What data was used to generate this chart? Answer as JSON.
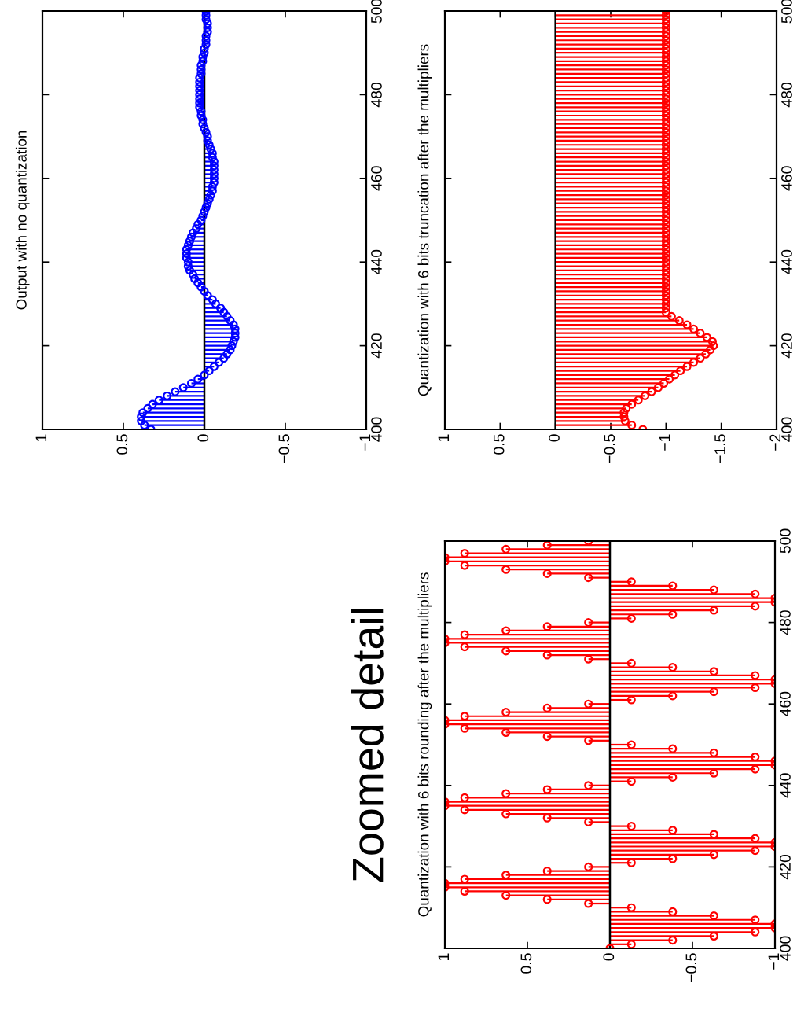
{
  "chart_data": [
    {
      "type": "lollipop",
      "orientation": "horizontal",
      "title": "Output with no quantization",
      "color": "#0000ff",
      "marker": "circle",
      "x": [
        400,
        401,
        402,
        403,
        404,
        405,
        406,
        407,
        408,
        409,
        410,
        411,
        412,
        413,
        414,
        415,
        416,
        417,
        418,
        419,
        420,
        421,
        422,
        423,
        424,
        425,
        426,
        427,
        428,
        429,
        430,
        431,
        432,
        433,
        434,
        435,
        436,
        437,
        438,
        439,
        440,
        441,
        442,
        443,
        444,
        445,
        446,
        447,
        448,
        449,
        450,
        451,
        452,
        453,
        454,
        455,
        456,
        457,
        458,
        459,
        460,
        461,
        462,
        463,
        464,
        465,
        466,
        467,
        468,
        469,
        470,
        471,
        472,
        473,
        474,
        475,
        476,
        477,
        478,
        479,
        480,
        481,
        482,
        483,
        484,
        485,
        486,
        487,
        488,
        489,
        490,
        491,
        492,
        493,
        494,
        495,
        496,
        497,
        498,
        499,
        500
      ],
      "values": [
        0.33,
        0.37,
        0.39,
        0.39,
        0.38,
        0.35,
        0.32,
        0.28,
        0.23,
        0.18,
        0.13,
        0.08,
        0.04,
        0.0,
        -0.03,
        -0.06,
        -0.09,
        -0.12,
        -0.14,
        -0.16,
        -0.17,
        -0.18,
        -0.19,
        -0.19,
        -0.19,
        -0.18,
        -0.16,
        -0.14,
        -0.12,
        -0.1,
        -0.07,
        -0.05,
        -0.02,
        0.0,
        0.02,
        0.04,
        0.06,
        0.07,
        0.09,
        0.1,
        0.1,
        0.11,
        0.11,
        0.11,
        0.1,
        0.09,
        0.08,
        0.07,
        0.05,
        0.04,
        0.02,
        0.01,
        0.0,
        -0.01,
        -0.02,
        -0.03,
        -0.04,
        -0.05,
        -0.05,
        -0.06,
        -0.06,
        -0.06,
        -0.06,
        -0.06,
        -0.06,
        -0.05,
        -0.05,
        -0.04,
        -0.03,
        -0.02,
        -0.02,
        -0.01,
        0.0,
        0.01,
        0.01,
        0.02,
        0.02,
        0.03,
        0.03,
        0.03,
        0.03,
        0.03,
        0.03,
        0.03,
        0.03,
        0.02,
        0.02,
        0.02,
        0.01,
        0.01,
        0.0,
        0.0,
        -0.01,
        -0.01,
        -0.01,
        -0.02,
        -0.02,
        -0.02,
        -0.01,
        -0.01,
        -0.01
      ],
      "xlim": [
        1,
        -1
      ],
      "xticks": [
        {
          "value": 1,
          "label": "1"
        },
        {
          "value": 0.5,
          "label": "0.5"
        },
        {
          "value": 0,
          "label": "0"
        },
        {
          "value": -0.5,
          "label": "−0.5"
        },
        {
          "value": -1,
          "label": "−1"
        }
      ],
      "ylim": [
        400,
        500
      ],
      "yticks": [
        400,
        420,
        440,
        460,
        480,
        500
      ]
    },
    {
      "type": "lollipop",
      "orientation": "horizontal",
      "title": "Quantization with 6 bits truncation after the multipliers",
      "color": "#ff0000",
      "marker": "circle",
      "x": [
        400,
        401,
        402,
        403,
        404,
        405,
        406,
        407,
        408,
        409,
        410,
        411,
        412,
        413,
        414,
        415,
        416,
        417,
        418,
        419,
        420,
        421,
        422,
        423,
        424,
        425,
        426,
        427,
        428,
        429,
        430,
        431,
        432,
        433,
        434,
        435,
        436,
        437,
        438,
        439,
        440,
        441,
        442,
        443,
        444,
        445,
        446,
        447,
        448,
        449,
        450,
        451,
        452,
        453,
        454,
        455,
        456,
        457,
        458,
        459,
        460,
        461,
        462,
        463,
        464,
        465,
        466,
        467,
        468,
        469,
        470,
        471,
        472,
        473,
        474,
        475,
        476,
        477,
        478,
        479,
        480,
        481,
        482,
        483,
        484,
        485,
        486,
        487,
        488,
        489,
        490,
        491,
        492,
        493,
        494,
        495,
        496,
        497,
        498,
        499,
        500
      ],
      "values": [
        -0.79,
        -0.69,
        -0.63,
        -0.62,
        -0.62,
        -0.64,
        -0.69,
        -0.75,
        -0.81,
        -0.87,
        -0.93,
        -0.98,
        -1.03,
        -1.08,
        -1.13,
        -1.19,
        -1.25,
        -1.31,
        -1.36,
        -1.4,
        -1.43,
        -1.42,
        -1.37,
        -1.31,
        -1.25,
        -1.19,
        -1.12,
        -1.05,
        -1,
        -1,
        -1,
        -1,
        -1,
        -1,
        -1,
        -1,
        -1,
        -1,
        -1,
        -1,
        -1,
        -1,
        -1,
        -1,
        -1,
        -1,
        -1,
        -1,
        -1,
        -1,
        -1,
        -1,
        -1,
        -1,
        -1,
        -1,
        -1,
        -1,
        -1,
        -1,
        -1,
        -1,
        -1,
        -1,
        -1,
        -1,
        -1,
        -1,
        -1,
        -1,
        -1,
        -1,
        -1,
        -1,
        -1,
        -1,
        -1,
        -1,
        -1,
        -1,
        -1,
        -1,
        -1,
        -1,
        -1,
        -1,
        -1,
        -1,
        -1,
        -1,
        -1,
        -1,
        -1,
        -1,
        -1,
        -1,
        -1,
        -1,
        -1,
        -1,
        -1
      ],
      "xlim": [
        1,
        -2
      ],
      "xticks": [
        {
          "value": 1,
          "label": "1"
        },
        {
          "value": 0.5,
          "label": "0.5"
        },
        {
          "value": 0,
          "label": "0"
        },
        {
          "value": -0.5,
          "label": "−0.5"
        },
        {
          "value": -1,
          "label": "−1"
        },
        {
          "value": -1.5,
          "label": "−1.5"
        },
        {
          "value": -2,
          "label": "−2"
        }
      ],
      "ylim": [
        400,
        500
      ],
      "yticks": [
        400,
        420,
        440,
        460,
        480,
        500
      ]
    },
    {
      "type": "lollipop",
      "orientation": "horizontal",
      "title": "Quantization with 6 bits rounding after the multipliers",
      "color": "#ff0000",
      "marker": "circle",
      "annotations": [
        "Zoomed detail"
      ],
      "x": [
        400,
        401,
        402,
        403,
        404,
        405,
        406,
        407,
        408,
        409,
        410,
        411,
        412,
        413,
        414,
        415,
        416,
        417,
        418,
        419,
        420,
        421,
        422,
        423,
        424,
        425,
        426,
        427,
        428,
        429,
        430,
        431,
        432,
        433,
        434,
        435,
        436,
        437,
        438,
        439,
        440,
        441,
        442,
        443,
        444,
        445,
        446,
        447,
        448,
        449,
        450,
        451,
        452,
        453,
        454,
        455,
        456,
        457,
        458,
        459,
        460,
        461,
        462,
        463,
        464,
        465,
        466,
        467,
        468,
        469,
        470,
        471,
        472,
        473,
        474,
        475,
        476,
        477,
        478,
        479,
        480,
        481,
        482,
        483,
        484,
        485,
        486,
        487,
        488,
        489,
        490,
        491,
        492,
        493,
        494,
        495,
        496,
        497,
        498,
        499,
        500
      ],
      "values": [
        0,
        -0.13,
        -0.38,
        -0.63,
        -0.88,
        -1,
        -1,
        -0.88,
        -0.63,
        -0.38,
        -0.13,
        0.13,
        0.38,
        0.63,
        0.88,
        1,
        1,
        0.88,
        0.63,
        0.38,
        0.13,
        -0.13,
        -0.38,
        -0.63,
        -0.88,
        -1,
        -1,
        -0.88,
        -0.63,
        -0.38,
        -0.13,
        0.13,
        0.38,
        0.63,
        0.88,
        1,
        1,
        0.88,
        0.63,
        0.38,
        0.13,
        -0.13,
        -0.38,
        -0.63,
        -0.88,
        -1,
        -1,
        -0.88,
        -0.63,
        -0.38,
        -0.13,
        0.13,
        0.38,
        0.63,
        0.88,
        1,
        1,
        0.88,
        0.63,
        0.38,
        0.13,
        -0.13,
        -0.38,
        -0.63,
        -0.88,
        -1,
        -1,
        -0.88,
        -0.63,
        -0.38,
        -0.13,
        0.13,
        0.38,
        0.63,
        0.88,
        1,
        1,
        0.88,
        0.63,
        0.38,
        0.13,
        -0.13,
        -0.38,
        -0.63,
        -0.88,
        -1,
        -1,
        -0.88,
        -0.63,
        -0.38,
        -0.13,
        0.13,
        0.38,
        0.63,
        0.88,
        1,
        1,
        0.88,
        0.63,
        0.38,
        0.13
      ],
      "xlim": [
        1,
        -1
      ],
      "xticks": [
        {
          "value": 1,
          "label": "1"
        },
        {
          "value": 0.5,
          "label": "0.5"
        },
        {
          "value": 0,
          "label": "0"
        },
        {
          "value": -0.5,
          "label": "−0.5"
        },
        {
          "value": -1,
          "label": "−1"
        }
      ],
      "ylim": [
        400,
        500
      ],
      "yticks": [
        400,
        420,
        440,
        460,
        480,
        500
      ]
    }
  ]
}
